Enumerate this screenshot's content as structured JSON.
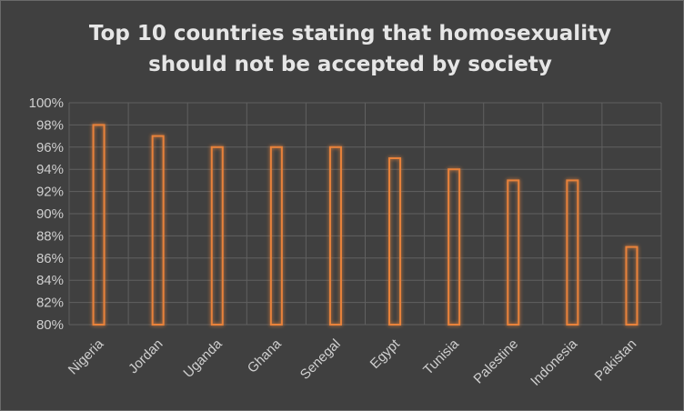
{
  "chart_data": {
    "type": "bar",
    "title": "Top 10 countries stating that homosexuality\nshould not be accepted by society",
    "categories": [
      "Nigeria",
      "Jordan",
      "Uganda",
      "Ghana",
      "Senegal",
      "Egypt",
      "Tunisia",
      "Palestine",
      "Indonesia",
      "Pakistan"
    ],
    "values": [
      98,
      97,
      96,
      96,
      96,
      95,
      94,
      93,
      93,
      87
    ],
    "ylim": [
      80,
      100
    ],
    "yticks": [
      "80%",
      "82%",
      "84%",
      "86%",
      "88%",
      "90%",
      "92%",
      "94%",
      "96%",
      "98%",
      "100%"
    ],
    "grid": true,
    "legend": "none",
    "colors": {
      "bar_outline": "#e8823a",
      "background": "#404040",
      "grid": "#606060",
      "text": "#cfcfcf"
    }
  }
}
